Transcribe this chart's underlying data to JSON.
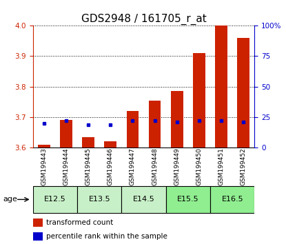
{
  "title": "GDS2948 / 161705_r_at",
  "samples": [
    "GSM199443",
    "GSM199444",
    "GSM199445",
    "GSM199446",
    "GSM199447",
    "GSM199448",
    "GSM199449",
    "GSM199450",
    "GSM199451",
    "GSM199452"
  ],
  "transformed_counts": [
    3.61,
    3.69,
    3.635,
    3.62,
    3.72,
    3.755,
    3.785,
    3.91,
    4.0,
    3.96
  ],
  "percentile_ranks": [
    20,
    22,
    19,
    19,
    22,
    22,
    21,
    22,
    22,
    21
  ],
  "age_groups": [
    {
      "label": "E12.5",
      "start": 0,
      "end": 1,
      "color": "#c8f0c8"
    },
    {
      "label": "E13.5",
      "start": 2,
      "end": 3,
      "color": "#c8f0c8"
    },
    {
      "label": "E14.5",
      "start": 4,
      "end": 5,
      "color": "#c8f0c8"
    },
    {
      "label": "E15.5",
      "start": 6,
      "end": 7,
      "color": "#90ee90"
    },
    {
      "label": "E16.5",
      "start": 8,
      "end": 9,
      "color": "#90ee90"
    }
  ],
  "ylim_left": [
    3.6,
    4.0
  ],
  "ylim_right": [
    0,
    100
  ],
  "yticks_left": [
    3.6,
    3.7,
    3.8,
    3.9,
    4.0
  ],
  "yticks_right": [
    0,
    25,
    50,
    75,
    100
  ],
  "bar_color": "#cc2200",
  "percentile_color": "#0000cc",
  "bar_bottom": 3.6,
  "bg_color": "#ffffff",
  "left_tick_color": "#cc2200",
  "right_tick_color": "#0000cc",
  "age_label_fontsize": 8,
  "sample_label_fontsize": 6.5,
  "title_fontsize": 11,
  "axis_fontsize": 7.5
}
